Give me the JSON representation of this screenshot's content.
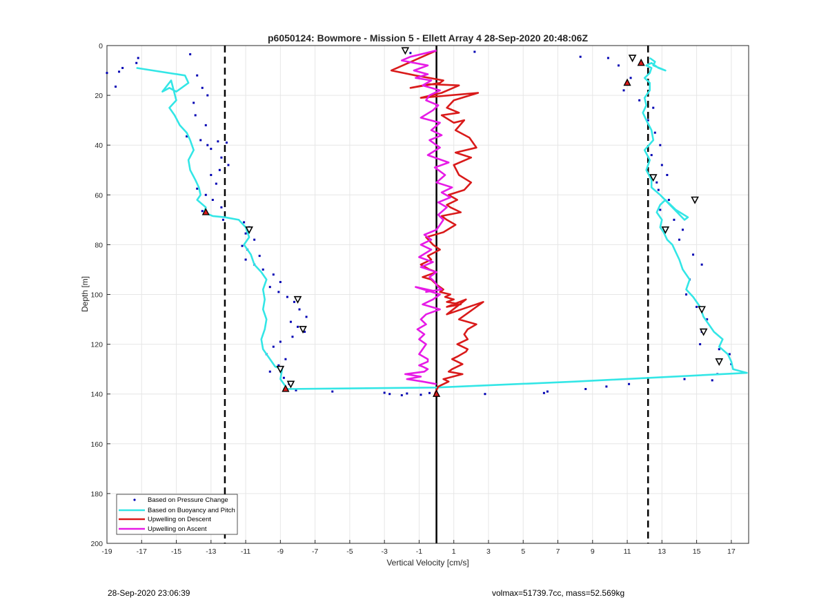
{
  "footer": {
    "left": "28-Sep-2020 23:06:39",
    "right": "volmax=51739.7cc, mass=52.569kg"
  },
  "colors": {
    "pressure": "#0000b3",
    "buoyancy": "#33e6e6",
    "descent": "#d91a1a",
    "ascent": "#e61ae6"
  },
  "chart_data": {
    "type": "line",
    "title": "p6050124: Bowmore - Mission 5 - Ellett Array 4 28-Sep-2020 20:48:06Z",
    "xlabel": "Vertical Velocity [cm/s]",
    "ylabel": "Depth [m]",
    "xlim": [
      -19,
      18
    ],
    "ylim": [
      0,
      200
    ],
    "y_reversed": true,
    "grid": true,
    "xticks": [
      -19,
      -17,
      -15,
      -13,
      -11,
      -9,
      -7,
      -5,
      -3,
      -1,
      1,
      3,
      5,
      7,
      9,
      11,
      13,
      15,
      17
    ],
    "yticks": [
      0,
      20,
      40,
      60,
      80,
      100,
      120,
      140,
      160,
      180,
      200
    ],
    "legend_location": "bottom-left",
    "reference_lines": [
      {
        "x": -12.2,
        "style": "dashed"
      },
      {
        "x": 12.2,
        "style": "dashed"
      },
      {
        "x": 0,
        "style": "solid"
      }
    ],
    "series": [
      {
        "name": "Based on Pressure Change",
        "style": "points",
        "x": [
          -18.3,
          -18.1,
          -17.2,
          -17.3,
          -14.2,
          -13.8,
          -13.5,
          -13.2,
          -14.0,
          -13.9,
          -13.3,
          -14.4,
          -13.6,
          -13.2,
          -13.0,
          -12.6,
          -12.1,
          -12.4,
          -12.0,
          -12.5,
          -13.0,
          -12.7,
          -13.8,
          -13.3,
          -12.9,
          -12.4,
          -13.5,
          -12.3,
          -11.1,
          -10.8,
          -11.0,
          -10.5,
          -11.2,
          -10.9,
          -10.2,
          -11.0,
          -10.5,
          -10.0,
          -9.4,
          -9.0,
          -9.6,
          -9.1,
          -8.6,
          -8.2,
          -7.9,
          -7.5,
          -8.4,
          -8.0,
          -7.6,
          -8.3,
          -9.0,
          -9.4,
          -9.8,
          -8.7,
          -9.1,
          -9.6,
          -8.8,
          -8.5,
          -8.1,
          -6.0,
          -3.0,
          -2.7,
          -2.0,
          -1.7,
          -0.9,
          -0.4,
          2.8,
          6.2,
          6.4,
          8.6,
          9.8,
          11.1,
          8.3,
          9.9,
          10.5,
          11.2,
          10.8,
          11.7,
          12.5,
          12.2,
          12.6,
          12.9,
          12.4,
          13.0,
          13.3,
          12.7,
          12.8,
          13.4,
          12.9,
          13.7,
          14.2,
          14.0,
          14.8,
          15.3,
          14.6,
          14.4,
          15.0,
          15.6,
          15.3,
          15.2,
          16.3,
          16.9,
          17.0,
          16.2,
          14.3,
          15.9,
          -19.0,
          -18.5,
          2.2,
          -1.5
        ],
        "y": [
          10.5,
          9.0,
          5.0,
          7.0,
          3.5,
          12.0,
          17.0,
          20.0,
          23.0,
          28.0,
          32.0,
          36.5,
          38.0,
          40.0,
          41.5,
          38.5,
          39.0,
          45.0,
          48.0,
          50.0,
          52.0,
          55.5,
          57.5,
          60.0,
          62.0,
          65.0,
          66.5,
          70.0,
          71.0,
          73.0,
          75.5,
          78.0,
          80.5,
          82.0,
          84.5,
          86.0,
          88.0,
          90.0,
          92.0,
          95.0,
          97.0,
          99.0,
          101.0,
          103.0,
          106.0,
          109.0,
          111.0,
          113.0,
          115.0,
          117.0,
          119.0,
          121.0,
          124.0,
          126.0,
          128.5,
          131.0,
          133.5,
          136.0,
          138.5,
          139.0,
          139.5,
          140.0,
          140.5,
          139.8,
          140.3,
          139.6,
          140.0,
          139.6,
          139.0,
          138.0,
          137.0,
          136.0,
          4.5,
          5.0,
          8.0,
          13.0,
          18.0,
          22.0,
          25.0,
          30.0,
          35.0,
          40.0,
          44.0,
          48.0,
          52.0,
          55.0,
          58.0,
          62.0,
          66.0,
          70.0,
          74.0,
          78.0,
          84.0,
          88.0,
          94.0,
          100.0,
          105.0,
          110.0,
          115.0,
          120.0,
          122.0,
          124.0,
          128.0,
          132.0,
          134.0,
          134.5,
          11.0,
          16.5,
          2.5,
          3.0
        ]
      },
      {
        "name": "Based on Buoyancy and Pitch",
        "style": "line",
        "x": [
          -17.3,
          -14.5,
          -14.3,
          -14.7,
          -15.0,
          -15.4,
          -15.8,
          -15.3,
          -15.0,
          -15.4,
          -15.1,
          -14.8,
          -14.4,
          -14.2,
          -14.0,
          -14.3,
          -14.2,
          -13.9,
          -13.7,
          -13.6,
          -13.8,
          -13.3,
          -13.4,
          -12.9,
          -12.2,
          -11.4,
          -11.0,
          -10.8,
          -11.1,
          -10.7,
          -10.5,
          -10.1,
          -9.8,
          -10.0,
          -9.9,
          -10.0,
          -9.8,
          -9.9,
          -10.1,
          -10.0,
          -9.6,
          -9.3,
          -8.9,
          -9.0,
          -8.7,
          -8.8,
          0.0,
          8.0,
          17.9,
          17.1,
          17.0,
          16.8,
          16.3,
          16.5,
          16.0,
          15.7,
          15.4,
          15.2,
          14.8,
          14.4,
          14.6,
          14.2,
          14.0,
          13.8,
          13.6,
          13.3,
          13.1,
          12.9,
          13.0,
          12.7,
          12.9,
          13.2,
          13.8,
          14.5,
          14.3,
          12.9,
          12.4,
          12.4,
          12.1,
          12.3,
          12.0,
          12.5,
          12.4,
          12.1,
          11.9,
          12.1,
          12.0,
          12.3,
          12.3,
          12.0,
          12.3,
          12.4,
          12.1,
          12.4,
          12.8,
          13.2,
          12.5,
          12.6,
          12.3
        ],
        "y": [
          9.0,
          12.0,
          15.0,
          17.0,
          18.5,
          17.0,
          18.5,
          14.0,
          22.0,
          25.0,
          28.0,
          32.0,
          35.0,
          38.0,
          42.0,
          46.0,
          50.0,
          54.0,
          57.0,
          60.0,
          62.0,
          65.0,
          67.0,
          68.5,
          69.0,
          70.0,
          73.0,
          77.0,
          80.0,
          84.0,
          88.0,
          91.0,
          94.0,
          98.0,
          102.0,
          106.0,
          110.0,
          114.0,
          118.0,
          122.0,
          126.0,
          129.0,
          130.0,
          134.0,
          137.0,
          138.0,
          137.4,
          135.0,
          131.5,
          130.0,
          127.0,
          124.0,
          121.0,
          118.0,
          115.0,
          112.0,
          109.0,
          105.0,
          101.0,
          98.0,
          94.0,
          90.0,
          86.0,
          83.0,
          80.0,
          78.0,
          75.0,
          73.0,
          70.0,
          67.0,
          64.0,
          62.0,
          66.0,
          69.0,
          70.0,
          60.0,
          57.0,
          54.0,
          50.0,
          46.0,
          42.0,
          38.0,
          34.0,
          30.0,
          27.0,
          24.0,
          21.0,
          18.0,
          15.0,
          13.0,
          11.0,
          9.0,
          8.0,
          7.0,
          9.0,
          10.0,
          8.0,
          6.5,
          5.0
        ]
      },
      {
        "name": "Upwelling on Descent",
        "style": "line",
        "x": [
          0.0,
          -2.6,
          -1.2,
          0.4,
          0.2,
          -1.5,
          -0.4,
          1.3,
          0.3,
          -0.9,
          2.4,
          1.0,
          0.6,
          1.3,
          0.3,
          1.0,
          1.6,
          1.1,
          1.9,
          2.3,
          1.1,
          2.0,
          1.0,
          1.3,
          2.0,
          1.6,
          0.7,
          1.2,
          0.6,
          0.8,
          1.4,
          0.3,
          0.6,
          1.1,
          0.4,
          -0.6,
          -0.2,
          0.2,
          -0.5,
          -0.3,
          -0.9,
          -0.4,
          0.0,
          -0.8,
          -0.3,
          0.0,
          0.4,
          0.2,
          0.8,
          0.5,
          1.0,
          0.6,
          1.4,
          0.6,
          1.7,
          0.6,
          2.7,
          1.3,
          2.3,
          1.8,
          1.6,
          1.8,
          1.2,
          1.8,
          1.7,
          1.2,
          0.9,
          1.5,
          0.9,
          0.7,
          1.5,
          0.4,
          0.7,
          0.1,
          -0.1
        ],
        "y": [
          2.0,
          10.0,
          12.0,
          14.0,
          15.0,
          17.0,
          15.5,
          16.0,
          19.0,
          21.0,
          19.0,
          22.0,
          25.0,
          27.0,
          28.0,
          31.0,
          30.0,
          34.0,
          37.0,
          41.0,
          43.0,
          45.0,
          48.0,
          52.0,
          55.0,
          58.0,
          60.0,
          62.0,
          64.0,
          65.0,
          67.0,
          68.5,
          70.0,
          72.0,
          75.0,
          77.0,
          80.0,
          82.0,
          84.5,
          86.0,
          88.0,
          90.0,
          91.0,
          93.0,
          94.0,
          96.0,
          98.0,
          99.0,
          100.0,
          101.0,
          102.0,
          103.0,
          104.0,
          105.0,
          102.0,
          108.0,
          103.0,
          110.0,
          112.0,
          114.0,
          116.0,
          118.0,
          120.0,
          122.0,
          123.0,
          125.0,
          126.0,
          128.0,
          130.0,
          131.0,
          132.0,
          134.0,
          135.0,
          137.0,
          140.0
        ]
      },
      {
        "name": "Upwelling on Ascent",
        "style": "line",
        "x": [
          0.0,
          -1.5,
          -2.0,
          -0.5,
          -1.3,
          -0.5,
          -1.2,
          -0.3,
          -0.8,
          0.2,
          -0.4,
          -0.6,
          0.1,
          -0.2,
          -0.9,
          0.2,
          -0.3,
          0.3,
          -0.4,
          0.2,
          -0.5,
          0.7,
          -0.1,
          0.5,
          0.0,
          0.9,
          0.3,
          0.8,
          0.1,
          0.6,
          0.1,
          0.4,
          0.2,
          0.0,
          -0.7,
          -0.3,
          -0.9,
          -0.3,
          -1.0,
          -0.2,
          -0.9,
          0.0,
          -0.4,
          -0.1,
          0.1,
          0.3,
          -0.6,
          -0.2,
          -1.2,
          0.2,
          -0.2,
          -0.8,
          0.2,
          -0.6,
          -0.9,
          -0.6,
          -1.1,
          -0.7,
          -1.0,
          -0.6,
          -0.8,
          -1.0,
          -0.5,
          -0.5,
          -1.0,
          -0.8,
          -0.5,
          -0.7,
          -1.8,
          -0.9,
          -1.7,
          -0.8,
          0.0
        ],
        "y": [
          2.0,
          4.5,
          6.0,
          8.0,
          10.0,
          11.5,
          13.0,
          14.0,
          16.0,
          18.0,
          20.0,
          22.0,
          24.0,
          26.0,
          29.0,
          31.0,
          34.0,
          36.0,
          38.0,
          41.0,
          44.0,
          47.0,
          49.0,
          52.0,
          55.0,
          57.0,
          59.0,
          61.0,
          63.0,
          65.0,
          68.0,
          70.0,
          72.0,
          74.0,
          76.0,
          78.0,
          80.0,
          82.0,
          85.0,
          87.0,
          89.0,
          91.0,
          93.0,
          95.0,
          97.0,
          98.0,
          99.0,
          98.5,
          97.0,
          100.0,
          102.0,
          104.0,
          106.0,
          108.0,
          110.0,
          112.0,
          114.0,
          116.0,
          118.0,
          120.0,
          122.0,
          124.0,
          126.0,
          127.0,
          128.5,
          129.0,
          130.0,
          131.0,
          132.0,
          133.0,
          134.0,
          135.0,
          136.0
        ]
      },
      {
        "name": "",
        "style": "markers-red-triangle",
        "x": [
          11.8,
          11.0,
          -13.3,
          -8.7,
          0.0
        ],
        "y": [
          7.0,
          15.0,
          67.0,
          138.0,
          140.0
        ]
      },
      {
        "name": "",
        "style": "markers-open-triangle",
        "x": [
          -1.8,
          11.3,
          12.5,
          -10.8,
          -8.0,
          -7.7,
          -9.0,
          -8.4,
          14.9,
          13.2,
          15.3,
          15.4,
          16.3
        ],
        "y": [
          2.0,
          5.0,
          53.0,
          74.0,
          102.0,
          114.0,
          130.0,
          136.0,
          62.0,
          74.0,
          106.0,
          115.0,
          127.0
        ]
      }
    ]
  }
}
